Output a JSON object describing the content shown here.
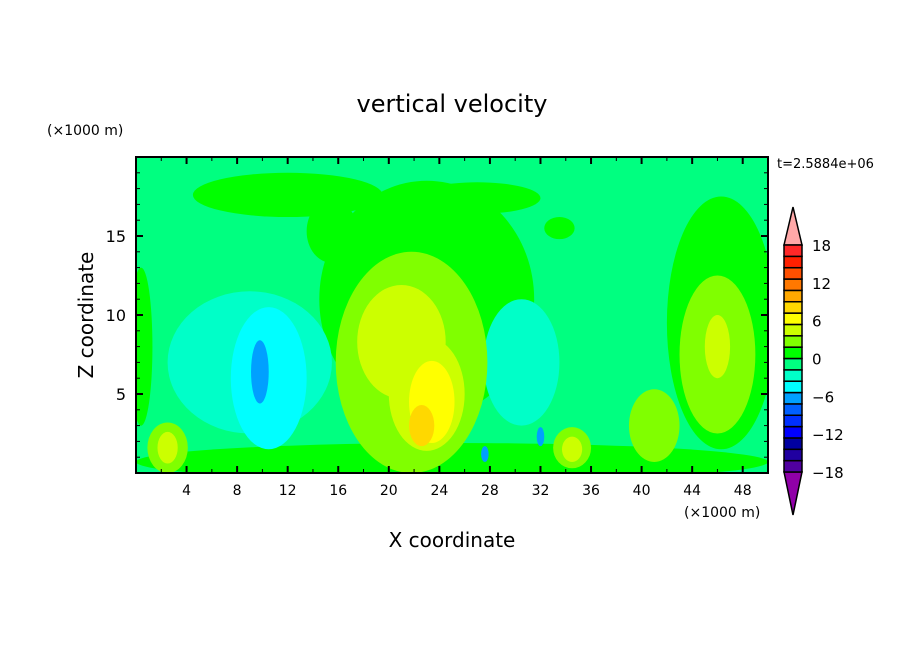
{
  "chart_data": {
    "type": "heatmap",
    "title": "vertical velocity",
    "xlabel": "X coordinate",
    "ylabel": "Z coordinate",
    "x_unit": "(×1000 m)",
    "y_unit": "(×1000 m)",
    "time_label": "t=2.5884e+06",
    "xlim": [
      0,
      50
    ],
    "ylim": [
      0,
      20
    ],
    "x_ticks": [
      4,
      8,
      12,
      16,
      20,
      24,
      28,
      32,
      36,
      40,
      44,
      48
    ],
    "y_ticks": [
      5,
      10,
      15
    ],
    "colorbar": {
      "levels": [
        -20,
        -18,
        -16,
        -14,
        -12,
        -10,
        -8,
        -6,
        -4,
        -2,
        0,
        2,
        4,
        6,
        8,
        10,
        12,
        14,
        16,
        18,
        20
      ],
      "labels": [
        "18",
        "12",
        "6",
        "0",
        "-6",
        "-12",
        "-18"
      ],
      "label_values": [
        18,
        12,
        6,
        0,
        -6,
        -12,
        -18
      ],
      "colors": [
        "#9000a8",
        "#5000a0",
        "#2000a0",
        "#0000a0",
        "#0000ff",
        "#0030ff",
        "#0060ff",
        "#00a0ff",
        "#00ffff",
        "#00ffc8",
        "#00ff80",
        "#00ff00",
        "#80ff00",
        "#ccff00",
        "#ffff00",
        "#ffd800",
        "#ffa800",
        "#ff7800",
        "#ff5000",
        "#ff2000",
        "#ff2828",
        "#ffa8a8"
      ]
    },
    "background_value": -1,
    "field_regions": [
      {
        "x": 12,
        "z": 17.6,
        "rx": 7.5,
        "rz": 1.4,
        "color": "#00ff00"
      },
      {
        "x": 27,
        "z": 17.4,
        "rx": 5,
        "rz": 1,
        "color": "#00ff00"
      },
      {
        "x": 33.5,
        "z": 15.5,
        "rx": 1.2,
        "rz": 0.7,
        "color": "#00ff00"
      },
      {
        "x": 15.5,
        "z": 15.3,
        "rx": 2,
        "rz": 2,
        "color": "#00ff00"
      },
      {
        "x": 23,
        "z": 11,
        "rx": 8.5,
        "rz": 7.5,
        "color": "#00ff00"
      },
      {
        "x": 46.3,
        "z": 9.5,
        "rx": 4.3,
        "rz": 8,
        "color": "#00ff00"
      },
      {
        "x": 0.4,
        "z": 8,
        "rx": 0.9,
        "rz": 5,
        "color": "#00ff00"
      },
      {
        "x": 25,
        "z": 0.7,
        "rx": 25,
        "rz": 1.2,
        "color": "#00ff00"
      },
      {
        "x": 9,
        "z": 7,
        "rx": 6.5,
        "rz": 4.5,
        "color": "#00ffc8"
      },
      {
        "x": 30.5,
        "z": 7,
        "rx": 3,
        "rz": 4,
        "color": "#00ffc8"
      },
      {
        "x": 10.5,
        "z": 6,
        "rx": 3,
        "rz": 4.5,
        "color": "#00ffff"
      },
      {
        "x": 9.8,
        "z": 6.4,
        "rx": 0.7,
        "rz": 2,
        "color": "#00a0ff"
      },
      {
        "x": 21.8,
        "z": 7,
        "rx": 6,
        "rz": 7,
        "color": "#80ff00"
      },
      {
        "x": 46,
        "z": 7.5,
        "rx": 3,
        "rz": 5,
        "color": "#80ff00"
      },
      {
        "x": 2.5,
        "z": 1.6,
        "rx": 1.6,
        "rz": 1.6,
        "color": "#80ff00"
      },
      {
        "x": 34.5,
        "z": 1.6,
        "rx": 1.5,
        "rz": 1.3,
        "color": "#80ff00"
      },
      {
        "x": 41,
        "z": 3,
        "rx": 2,
        "rz": 2.3,
        "color": "#80ff00"
      },
      {
        "x": 21,
        "z": 8.3,
        "rx": 3.5,
        "rz": 3.6,
        "color": "#ccff00"
      },
      {
        "x": 23,
        "z": 5,
        "rx": 3,
        "rz": 3.6,
        "color": "#ccff00"
      },
      {
        "x": 46,
        "z": 8,
        "rx": 1,
        "rz": 2,
        "color": "#ccff00"
      },
      {
        "x": 2.5,
        "z": 1.6,
        "rx": 0.8,
        "rz": 1,
        "color": "#ccff00"
      },
      {
        "x": 34.5,
        "z": 1.5,
        "rx": 0.8,
        "rz": 0.8,
        "color": "#ccff00"
      },
      {
        "x": 23.4,
        "z": 4.5,
        "rx": 1.8,
        "rz": 2.6,
        "color": "#ffff00"
      },
      {
        "x": 22.6,
        "z": 3,
        "rx": 1,
        "rz": 1.3,
        "color": "#ffd800"
      },
      {
        "x": 27.6,
        "z": 1.2,
        "rx": 0.3,
        "rz": 0.5,
        "color": "#00a0ff"
      },
      {
        "x": 32,
        "z": 2.3,
        "rx": 0.3,
        "rz": 0.6,
        "color": "#00a0ff"
      }
    ]
  }
}
